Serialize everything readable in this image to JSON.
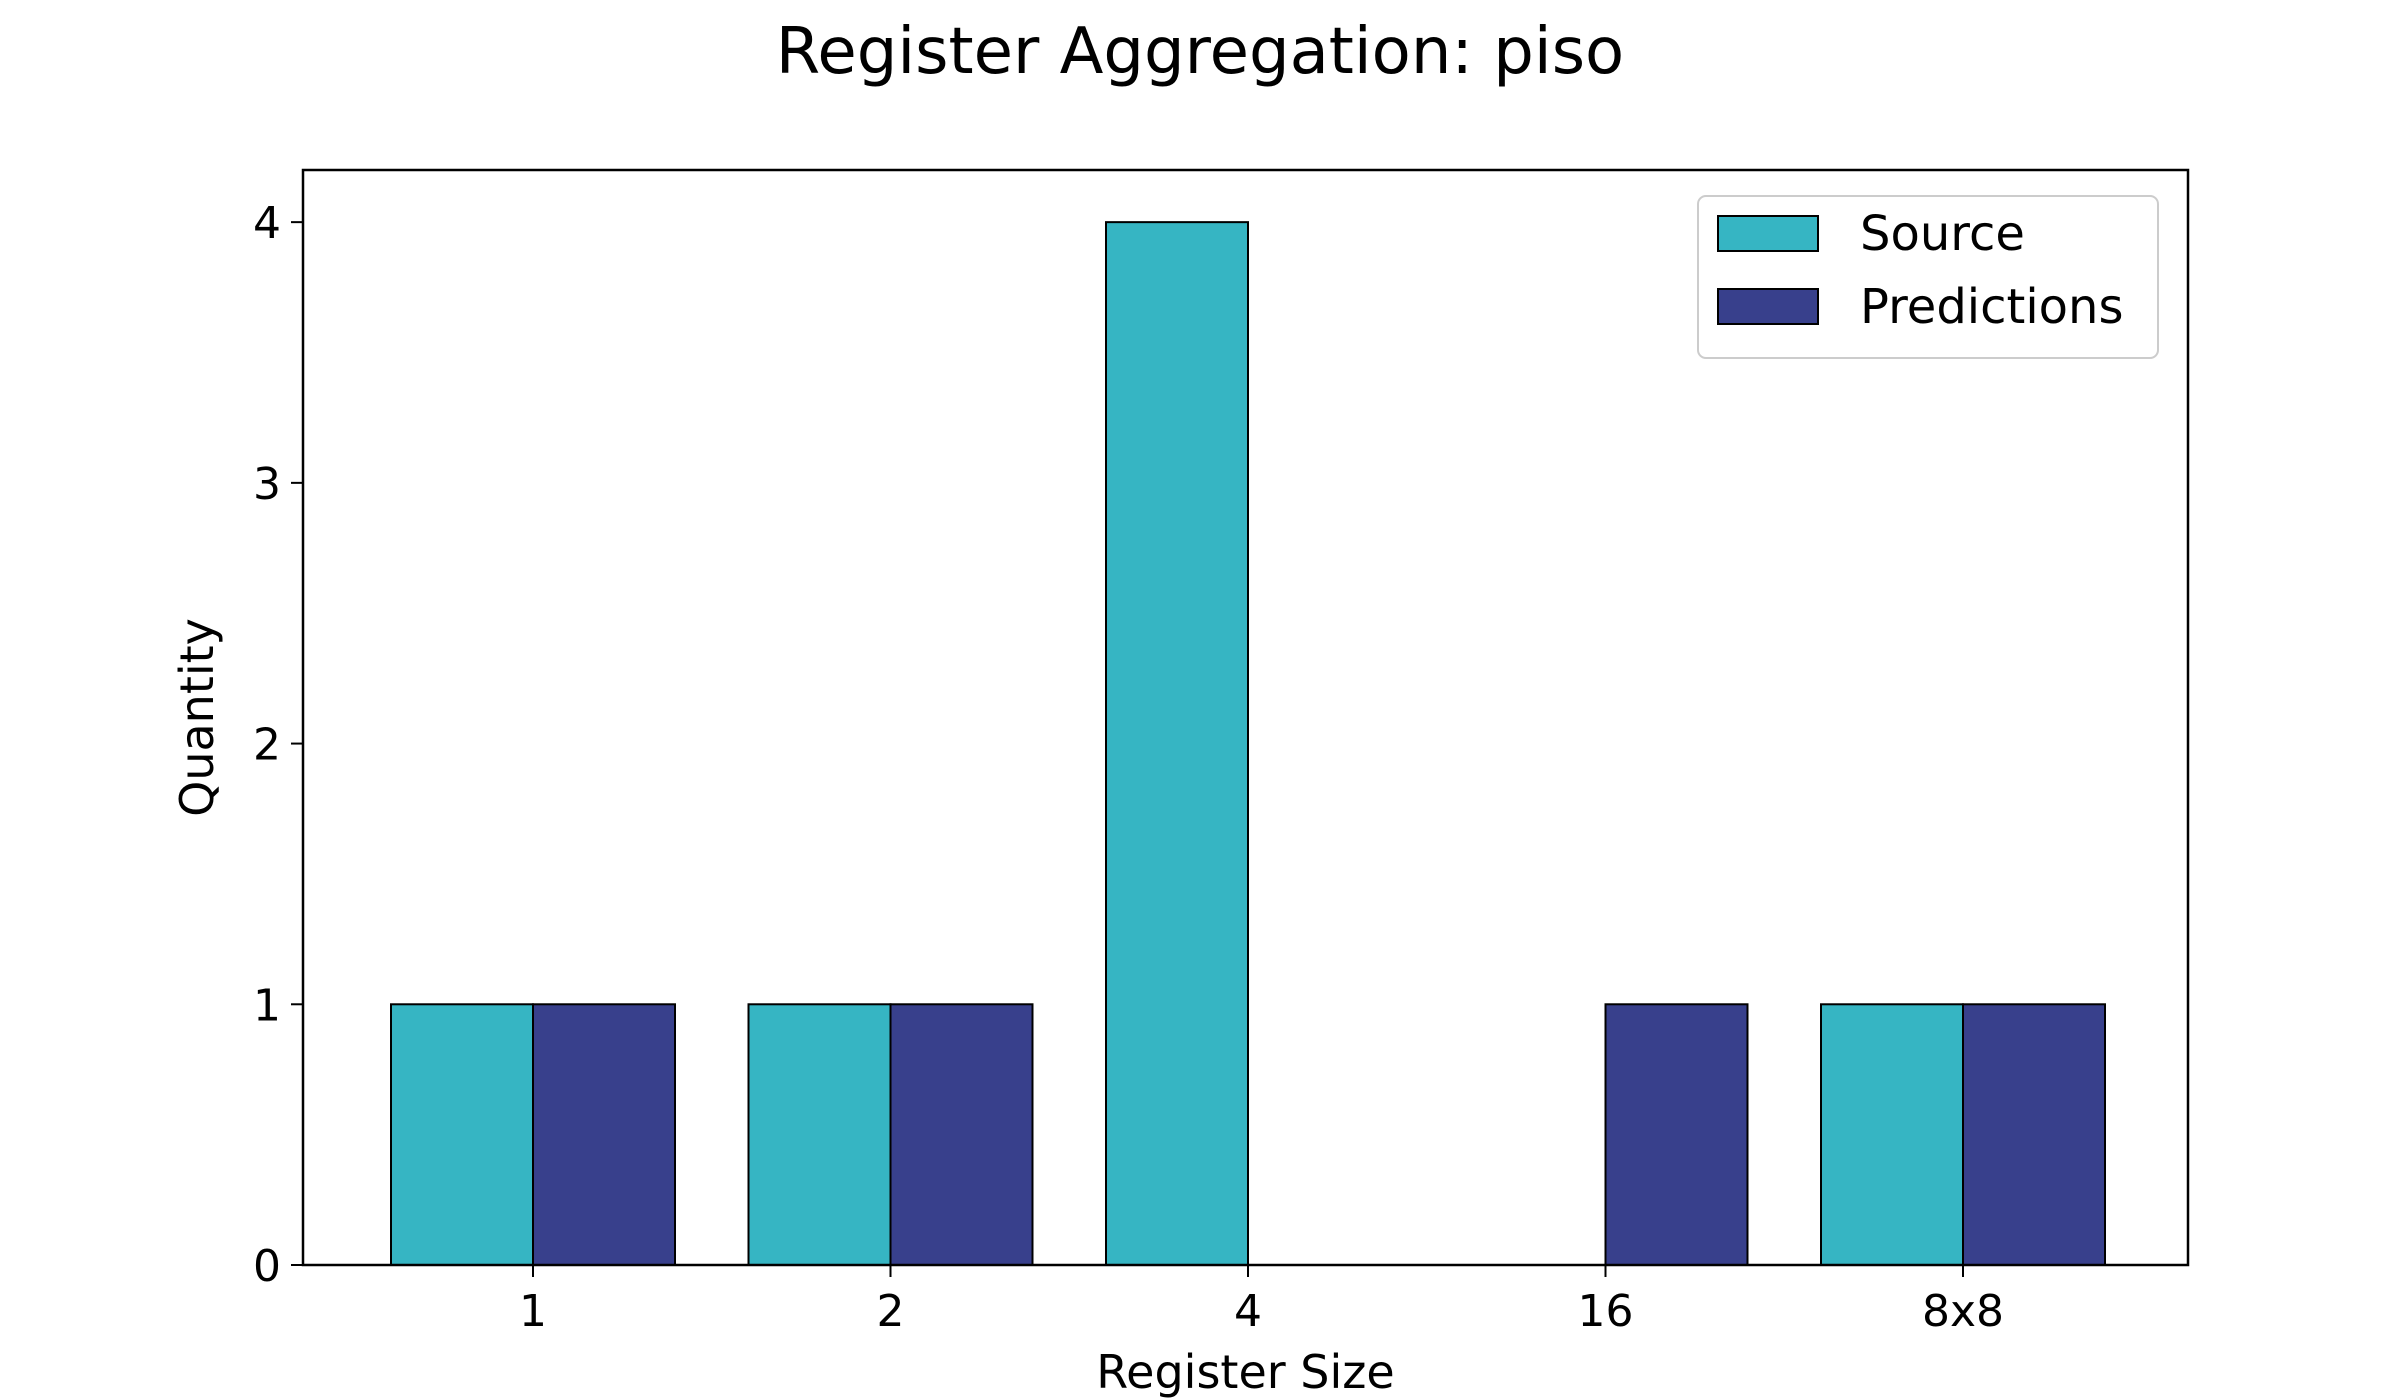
{
  "chart_data": {
    "type": "bar",
    "title": "Register Aggregation: piso",
    "xlabel": "Register Size",
    "ylabel": "Quantity",
    "categories": [
      "1",
      "2",
      "4",
      "16",
      "8x8"
    ],
    "series": [
      {
        "name": "Source",
        "color": "#36b5c3",
        "values": [
          1,
          1,
          4,
          0,
          1
        ]
      },
      {
        "name": "Predictions",
        "color": "#38408c",
        "values": [
          1,
          1,
          0,
          1,
          1
        ]
      }
    ],
    "ylim": [
      0,
      4.2
    ],
    "yticks": [
      0,
      1,
      2,
      3,
      4
    ],
    "grid": false,
    "legend_position": "top-right"
  }
}
